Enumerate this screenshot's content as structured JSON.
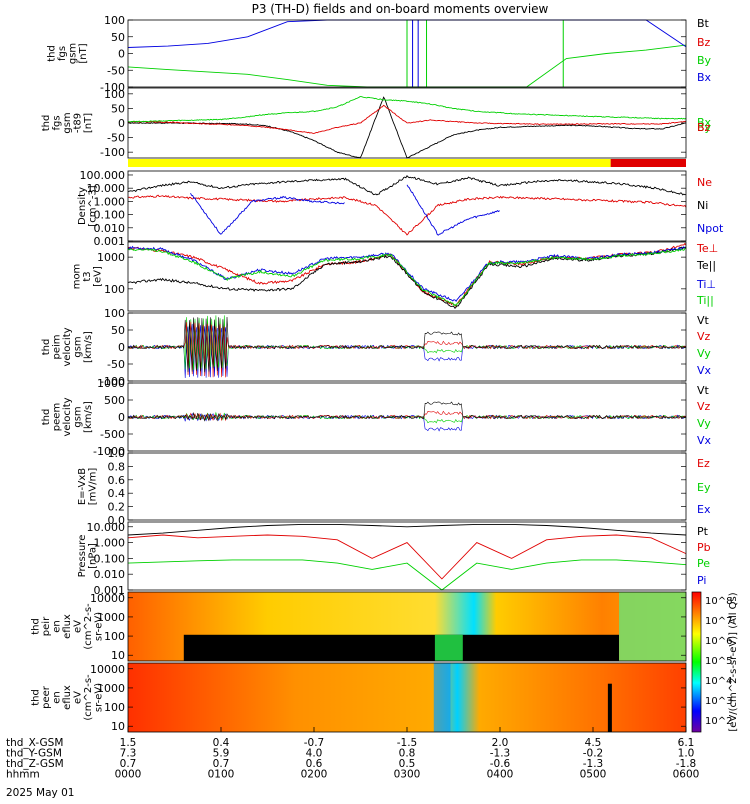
{
  "title": "P3 (TH-D) fields and on-board moments overview",
  "date": "2025 May 01",
  "colors": {
    "black": "#000000",
    "red": "#e00000",
    "green": "#00d000",
    "blue": "#0000e0",
    "yellow": "#ffff00",
    "mode_red": "#e00000"
  },
  "ephemeris": {
    "labels": [
      "thd_X-GSM",
      "thd_Y-GSM",
      "thd_Z-GSM",
      "hhmm"
    ],
    "columns": [
      [
        "1.5",
        "7.3",
        "0.7",
        "0000"
      ],
      [
        "0.4",
        "5.9",
        "0.7",
        "0100"
      ],
      [
        "-0.7",
        "4.0",
        "0.6",
        "0200"
      ],
      [
        "-1.5",
        "0.8",
        "0.5",
        "0300"
      ],
      [
        "2.0",
        "-1.3",
        "-0.6",
        "0400"
      ],
      [
        "4.5",
        "-0.2",
        "-1.3",
        "0500"
      ],
      [
        "6.1",
        "1.0",
        "-1.8",
        "0600"
      ]
    ]
  },
  "spec_colorbar": {
    "label": "[eV/(cm^2-s-sr-eV)] (All Qs)",
    "ticks": [
      "10^8",
      "10^7",
      "10^6",
      "10^5",
      "10^4",
      "10^3",
      "10^2"
    ]
  },
  "chart_data": [
    {
      "id": "fgs",
      "type": "line",
      "ylabel": [
        "thd",
        "fgs",
        "gsm",
        "[nT]"
      ],
      "ylim": [
        -100,
        100
      ],
      "ticks": [
        "100",
        "50",
        "0",
        "-50",
        "-100"
      ],
      "legend": [
        "Bt",
        "Bz",
        "By",
        "Bx"
      ],
      "series": [
        {
          "name": "Bt",
          "values": []
        },
        {
          "name": "Bz",
          "values": []
        },
        {
          "name": "By",
          "values": [
            -40,
            -48,
            -55,
            -62,
            -78,
            -95,
            -100,
            -100,
            -100,
            -100,
            -100,
            -15,
            0,
            10,
            25
          ]
        },
        {
          "name": "Bx",
          "values": [
            18,
            22,
            30,
            50,
            95,
            100,
            100,
            100,
            100,
            100,
            100,
            100,
            100,
            100,
            20
          ]
        }
      ]
    },
    {
      "id": "fgs_dsl",
      "type": "line",
      "ylabel": [
        "thd",
        "fgs",
        "gsm",
        "-t89",
        "[nT]"
      ],
      "ylim": [
        -120,
        120
      ],
      "ticks": [
        "100",
        "50",
        "0",
        "-50",
        "-100"
      ],
      "legend": [
        "Bx",
        "By",
        "Bz"
      ],
      "series": [
        {
          "name": "black",
          "values": [
            0,
            0,
            0,
            -1,
            -2,
            -3,
            -10,
            -30,
            -60,
            -100,
            -120,
            90,
            -120,
            -80,
            -40,
            -25,
            -15,
            -12,
            -10,
            -8,
            -10,
            -15,
            -20,
            -20,
            0
          ]
        },
        {
          "name": "red",
          "values": [
            5,
            4,
            2,
            -2,
            -5,
            -8,
            -15,
            -25,
            -35,
            -15,
            0,
            60,
            0,
            10,
            5,
            0,
            -2,
            -3,
            -4,
            -4,
            -3,
            -3,
            -3,
            -3,
            5
          ]
        },
        {
          "name": "green",
          "values": [
            5,
            6,
            8,
            10,
            12,
            20,
            30,
            35,
            40,
            55,
            90,
            80,
            75,
            65,
            50,
            40,
            35,
            30,
            28,
            25,
            22,
            20,
            18,
            15,
            15
          ]
        }
      ]
    },
    {
      "id": "mode_bar",
      "type": "bar",
      "segments": [
        {
          "from": 0.0,
          "to": 0.865,
          "color": "yellow"
        },
        {
          "from": 0.865,
          "to": 1.0,
          "color": "red"
        }
      ]
    },
    {
      "id": "density",
      "type": "line",
      "ylabel": [
        "Density",
        "[cm^-3]"
      ],
      "scale": "log",
      "ylim": [
        0.001,
        200
      ],
      "ticks": [
        "100.000",
        "10.000",
        "1.000",
        "0.100",
        "0.010",
        "0.001"
      ],
      "legend": [
        "Ne",
        "Ni",
        "Npot"
      ],
      "series": [
        {
          "name": "Ne",
          "values": [
            2,
            2.5,
            1.8,
            1.5,
            1.2,
            1.0,
            1.5,
            2,
            0.5,
            0.003,
            0.5,
            1.5,
            2,
            1.8,
            1.5,
            1.2,
            1.0,
            0.8,
            0.4
          ]
        },
        {
          "name": "Ni",
          "values": [
            5,
            15,
            30,
            10,
            20,
            30,
            40,
            50,
            3,
            80,
            20,
            60,
            15,
            30,
            40,
            30,
            20,
            10,
            3
          ]
        },
        {
          "name": "Npot",
          "values": [
            null,
            null,
            5,
            0.003,
            1,
            2,
            1,
            0.7,
            null,
            20,
            0.003,
            0.05,
            0.2,
            null,
            null,
            null,
            null,
            null,
            null
          ]
        }
      ]
    },
    {
      "id": "temperature",
      "type": "line",
      "ylabel": [
        "mom",
        "t3",
        "[eV]"
      ],
      "scale": "log",
      "ylim": [
        20,
        3000
      ],
      "ticks": [
        "1000",
        "100"
      ],
      "legend": [
        "Te⊥",
        "Te||",
        "Ti⊥",
        "Ti||"
      ],
      "series": [
        {
          "name": "Te⊥",
          "values": [
            2000,
            1600,
            1000,
            400,
            150,
            180,
            600,
            700,
            1200,
            80,
            30,
            700,
            600,
            1000,
            900,
            1200,
            1400,
            2500
          ]
        },
        {
          "name": "Te||",
          "values": [
            150,
            200,
            150,
            100,
            90,
            100,
            600,
            700,
            1100,
            80,
            25,
            600,
            500,
            900,
            800,
            1100,
            1300,
            2000
          ]
        },
        {
          "name": "Ti⊥",
          "values": [
            2000,
            1800,
            800,
            200,
            400,
            300,
            900,
            1000,
            1300,
            100,
            40,
            700,
            700,
            1100,
            900,
            1200,
            1400,
            2000
          ]
        },
        {
          "name": "Ti||",
          "values": [
            1800,
            1600,
            700,
            200,
            350,
            250,
            800,
            900,
            1200,
            90,
            30,
            650,
            650,
            1000,
            850,
            1100,
            1300,
            1800
          ]
        }
      ]
    },
    {
      "id": "peim_velocity",
      "type": "line",
      "ylabel": [
        "thd",
        "peim",
        "velocity",
        "gsm",
        "[km/s]"
      ],
      "ylim": [
        -100,
        100
      ],
      "ticks": [
        "100",
        "50",
        "0",
        "-50",
        "-100"
      ],
      "legend": [
        "Vt",
        "Vz",
        "Vy",
        "Vx"
      ]
    },
    {
      "id": "peem_velocity",
      "type": "line",
      "ylabel": [
        "thd",
        "peem",
        "velocity",
        "gsm",
        "[km/s]"
      ],
      "ylim": [
        -1000,
        1000
      ],
      "ticks": [
        "1000",
        "500",
        "0",
        "-500",
        "-1000"
      ],
      "legend": [
        "Vt",
        "Vz",
        "Vy",
        "Vx"
      ]
    },
    {
      "id": "efield",
      "type": "line",
      "ylabel": [
        "E=-VxB",
        "[mV/m]"
      ],
      "ylim": [
        0,
        1
      ],
      "ticks": [
        "1.0",
        "0.8",
        "0.6",
        "0.4",
        "0.2",
        "0.0"
      ],
      "legend": [
        "Ez",
        "Ey",
        "Ex"
      ],
      "series": []
    },
    {
      "id": "pressure",
      "type": "line",
      "ylabel": [
        "Pressure",
        "[nPa]"
      ],
      "scale": "log",
      "ylim": [
        0.001,
        20
      ],
      "ticks": [
        "10.000",
        "1.000",
        "0.100",
        "0.010",
        "0.001"
      ],
      "legend": [
        "Pt",
        "Pb",
        "Pe",
        "Pi"
      ],
      "series": [
        {
          "name": "Pt",
          "values": [
            3,
            4,
            6,
            9,
            12,
            14,
            14,
            12,
            10,
            12,
            14,
            14,
            12,
            9,
            6,
            4,
            3
          ]
        },
        {
          "name": "Pb",
          "values": [
            2,
            3,
            2,
            2.5,
            3,
            2.5,
            1.5,
            0.1,
            1,
            0.005,
            1,
            0.1,
            1.5,
            2.5,
            3,
            2,
            0.2
          ]
        },
        {
          "name": "Pe",
          "values": [
            0.05,
            0.06,
            0.07,
            0.08,
            0.08,
            0.08,
            0.05,
            0.02,
            0.05,
            0.001,
            0.05,
            0.02,
            0.05,
            0.08,
            0.08,
            0.06,
            0.04
          ]
        },
        {
          "name": "Pi",
          "values": []
        }
      ]
    },
    {
      "id": "peir_spec",
      "type": "heatmap",
      "ylabel": [
        "thd",
        "peir",
        "en",
        "eflux",
        "eV",
        "(cm^2-s-",
        "sr-eV)"
      ],
      "scale": "log",
      "ylim": [
        5,
        20000
      ],
      "ticks": [
        "10000",
        "1000",
        "100",
        "10"
      ]
    },
    {
      "id": "peer_spec",
      "type": "heatmap",
      "ylabel": [
        "thd",
        "peer",
        "en",
        "eflux",
        "eV",
        "(cm^2-s-",
        "sr-eV)"
      ],
      "scale": "log",
      "ylim": [
        5,
        20000
      ],
      "ticks": [
        "10000",
        "1000",
        "100",
        "10"
      ]
    }
  ]
}
